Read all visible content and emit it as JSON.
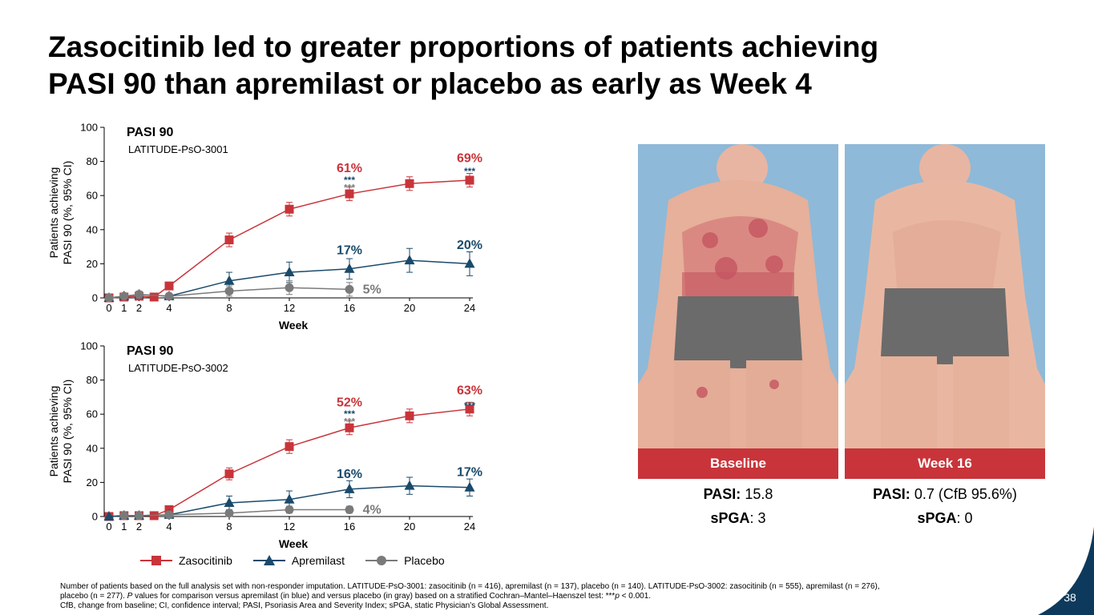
{
  "title": {
    "line1": "Zasocitinib led to greater proportions of patients achieving",
    "line2": "PASI 90 than apremilast or placebo as early as Week 4"
  },
  "chart_data": [
    {
      "type": "line",
      "title": "PASI 90",
      "subtitle": "LATITUDE-PsO-3001",
      "xlabel": "Week",
      "ylabel_line1": "Patients achieving",
      "ylabel_line2": "PASI 90 (%, 95% CI)",
      "xlim": [
        0,
        24
      ],
      "ylim": [
        0,
        100
      ],
      "xticks": [
        0,
        1,
        2,
        4,
        8,
        12,
        16,
        20,
        24
      ],
      "yticks": [
        0,
        20,
        40,
        60,
        80,
        100
      ],
      "series": [
        {
          "name": "Zasocitinib",
          "color": "#c8343a",
          "marker": "square",
          "x": [
            0,
            1,
            2,
            3,
            4,
            8,
            12,
            16,
            20,
            24
          ],
          "y": [
            0,
            0.5,
            1,
            0.5,
            7,
            34,
            52,
            61,
            67,
            69
          ],
          "err": [
            0,
            0.5,
            1,
            0.5,
            2,
            4,
            4,
            4,
            4,
            4
          ]
        },
        {
          "name": "Apremilast",
          "color": "#1a4a6b",
          "marker": "triangle",
          "x": [
            0,
            1,
            2,
            4,
            8,
            12,
            16,
            20,
            24
          ],
          "y": [
            0,
            1,
            2,
            1,
            10,
            15,
            17,
            22,
            20
          ],
          "err": [
            0,
            1,
            2,
            1,
            5,
            6,
            6,
            7,
            7
          ]
        },
        {
          "name": "Placebo",
          "color": "#7a7a7a",
          "marker": "circle",
          "x": [
            0,
            1,
            2,
            4,
            8,
            12,
            16
          ],
          "y": [
            0,
            1,
            2,
            1,
            4,
            6,
            5
          ],
          "err": [
            0,
            1,
            2,
            1,
            3,
            4,
            4
          ]
        }
      ],
      "annotations": [
        {
          "text": "61%",
          "x": 16,
          "y": 76,
          "color": "#c8343a"
        },
        {
          "text": "69%",
          "x": 24,
          "y": 82,
          "color": "#c8343a"
        },
        {
          "text": "17%",
          "x": 16,
          "y": 28,
          "color": "#1a4a6b"
        },
        {
          "text": "20%",
          "x": 24,
          "y": 31,
          "color": "#1a4a6b"
        },
        {
          "text": "5%",
          "x": 17.5,
          "y": 5,
          "color": "#7a7a7a"
        }
      ],
      "significance": [
        {
          "text": "***",
          "x": 16,
          "y": 71,
          "color": "#1a4a6b"
        },
        {
          "text": "***",
          "x": 16,
          "y": 66.5,
          "color": "#7a7a7a"
        },
        {
          "text": "***",
          "x": 24,
          "y": 76,
          "color": "#1a4a6b"
        }
      ]
    },
    {
      "type": "line",
      "title": "PASI 90",
      "subtitle": "LATITUDE-PsO-3002",
      "xlabel": "Week",
      "ylabel_line1": "Patients achieving",
      "ylabel_line2": "PASI 90 (%, 95% CI)",
      "xlim": [
        0,
        24
      ],
      "ylim": [
        0,
        100
      ],
      "xticks": [
        0,
        1,
        2,
        4,
        8,
        12,
        16,
        20,
        24
      ],
      "yticks": [
        0,
        20,
        40,
        60,
        80,
        100
      ],
      "series": [
        {
          "name": "Zasocitinib",
          "color": "#c8343a",
          "marker": "square",
          "x": [
            0,
            1,
            2,
            3,
            4,
            8,
            12,
            16,
            20,
            24
          ],
          "y": [
            0,
            0.5,
            0.5,
            0.5,
            4,
            25,
            41,
            52,
            59,
            63
          ],
          "err": [
            0,
            0.5,
            0.5,
            0.5,
            1.5,
            3.5,
            4,
            4,
            4,
            4
          ]
        },
        {
          "name": "Apremilast",
          "color": "#1a4a6b",
          "marker": "triangle",
          "x": [
            0,
            1,
            2,
            4,
            8,
            12,
            16,
            20,
            24
          ],
          "y": [
            0,
            0.5,
            0.5,
            1,
            8,
            10,
            16,
            18,
            17
          ],
          "err": [
            0,
            0.5,
            0.5,
            1,
            4,
            5,
            5,
            5,
            5
          ]
        },
        {
          "name": "Placebo",
          "color": "#7a7a7a",
          "marker": "circle",
          "x": [
            1,
            2,
            4,
            8,
            12,
            16
          ],
          "y": [
            0.5,
            0.5,
            1,
            2,
            4,
            4
          ],
          "err": [
            0.5,
            0.5,
            1,
            2,
            2,
            2
          ]
        }
      ],
      "annotations": [
        {
          "text": "52%",
          "x": 16,
          "y": 67,
          "color": "#c8343a"
        },
        {
          "text": "63%",
          "x": 24,
          "y": 74,
          "color": "#c8343a"
        },
        {
          "text": "16%",
          "x": 16,
          "y": 25,
          "color": "#1a4a6b"
        },
        {
          "text": "17%",
          "x": 24,
          "y": 26,
          "color": "#1a4a6b"
        },
        {
          "text": "4%",
          "x": 17.5,
          "y": 4,
          "color": "#7a7a7a"
        }
      ],
      "significance": [
        {
          "text": "***",
          "x": 16,
          "y": 62,
          "color": "#1a4a6b"
        },
        {
          "text": "***",
          "x": 16,
          "y": 57.5,
          "color": "#7a7a7a"
        },
        {
          "text": "***",
          "x": 24,
          "y": 67,
          "color": "#1a4a6b"
        }
      ]
    }
  ],
  "legend": {
    "items": [
      {
        "label": "Zasocitinib",
        "color": "#c8343a",
        "marker": "square"
      },
      {
        "label": "Apremilast",
        "color": "#1a4a6b",
        "marker": "triangle"
      },
      {
        "label": "Placebo",
        "color": "#7a7a7a",
        "marker": "circle"
      }
    ]
  },
  "photos": {
    "baseline_label": "Baseline",
    "week16_label": "Week 16"
  },
  "scores": {
    "baseline": {
      "pasi_label": "PASI:",
      "pasi_value": "15.8",
      "spga_label": "sPGA",
      "spga_value": ": 3"
    },
    "week16": {
      "pasi_label": "PASI:",
      "pasi_value": "0.7 (CfB 95.6%)",
      "spga_label": "sPGA",
      "spga_value": ": 0"
    }
  },
  "footnote": {
    "line1": "Number of patients based on the full analysis set with non-responder imputation. LATITUDE-PsO-3001: zasocitinib (n = 416), apremilast (n = 137), placebo (n = 140). LATITUDE-PsO-3002: zasocitinib (n = 555), apremilast (n = 276),",
    "line2a": "placebo (n = 277). ",
    "line2b": "P",
    "line2c": " values for comparison versus apremilast (in blue) and versus placebo (in gray) based on a stratified Cochran–Mantel–Haenszel test: ***",
    "line2d": "p",
    "line2e": " < 0.001.",
    "line3": "CfB, change from baseline; CI, confidence interval; PASI, Psoriasis Area and Severity Index; sPGA, static Physician’s Global Assessment."
  },
  "page_number": "38",
  "colors": {
    "accent_red": "#c8343a",
    "navy": "#1a4a6b",
    "gray": "#7a7a7a",
    "photo_bg": "#8fb9d8",
    "corner": "#0d3a5c"
  }
}
